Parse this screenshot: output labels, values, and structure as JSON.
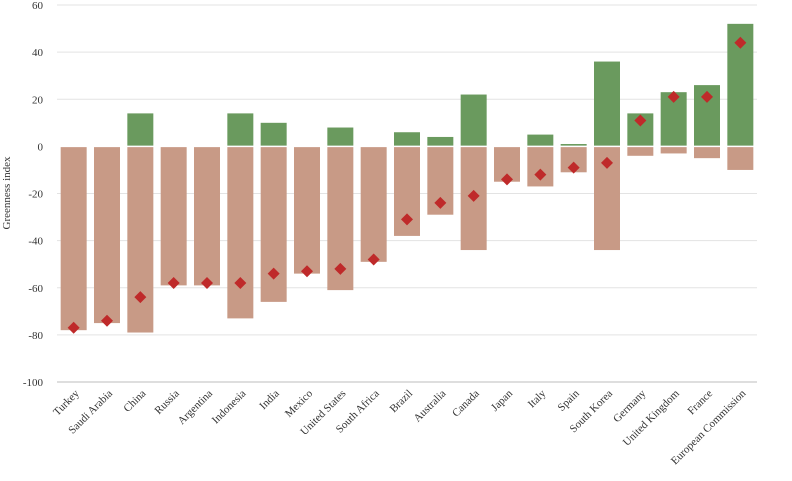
{
  "chart_data": {
    "type": "bar",
    "title": "",
    "xlabel": "",
    "ylabel": "Greenness index",
    "ylim": [
      -100,
      60
    ],
    "yticks": [
      -100,
      -80,
      -60,
      -40,
      -20,
      0,
      20,
      40,
      60
    ],
    "grid": true,
    "legend": "none",
    "colors": {
      "positive": "#6a9a5e",
      "negative": "#c89a86",
      "marker": "#bf2a2a",
      "grid": "#e3e3e3",
      "axis": "#bdbdbd"
    },
    "categories": [
      "Turkey",
      "Saudi Arabia",
      "China",
      "Russia",
      "Argentina",
      "Indonesia",
      "India",
      "Mexico",
      "United States",
      "South Africa",
      "Brazil",
      "Australia",
      "Canada",
      "Japan",
      "Italy",
      "Spain",
      "South Korea",
      "Germany",
      "United Kingdom",
      "France",
      "European Commission"
    ],
    "series": [
      {
        "values": [
          0,
          0,
          14,
          0,
          0,
          14,
          10,
          0,
          8,
          0,
          6,
          4,
          22,
          0,
          5,
          1,
          36,
          14,
          23,
          26,
          52
        ]
      },
      {
        "values": [
          -78,
          -75,
          -79,
          -59,
          -59,
          -73,
          -66,
          -54,
          -61,
          -49,
          -38,
          -29,
          -44,
          -15,
          -17,
          -11,
          -44,
          -4,
          -3,
          -5,
          -10
        ]
      },
      {
        "values": [
          -77,
          -74,
          -64,
          -58,
          -58,
          -58,
          -54,
          -53,
          -52,
          -48,
          -31,
          -24,
          -21,
          -14,
          -12,
          -9,
          -7,
          11,
          21,
          21,
          44
        ]
      }
    ]
  }
}
